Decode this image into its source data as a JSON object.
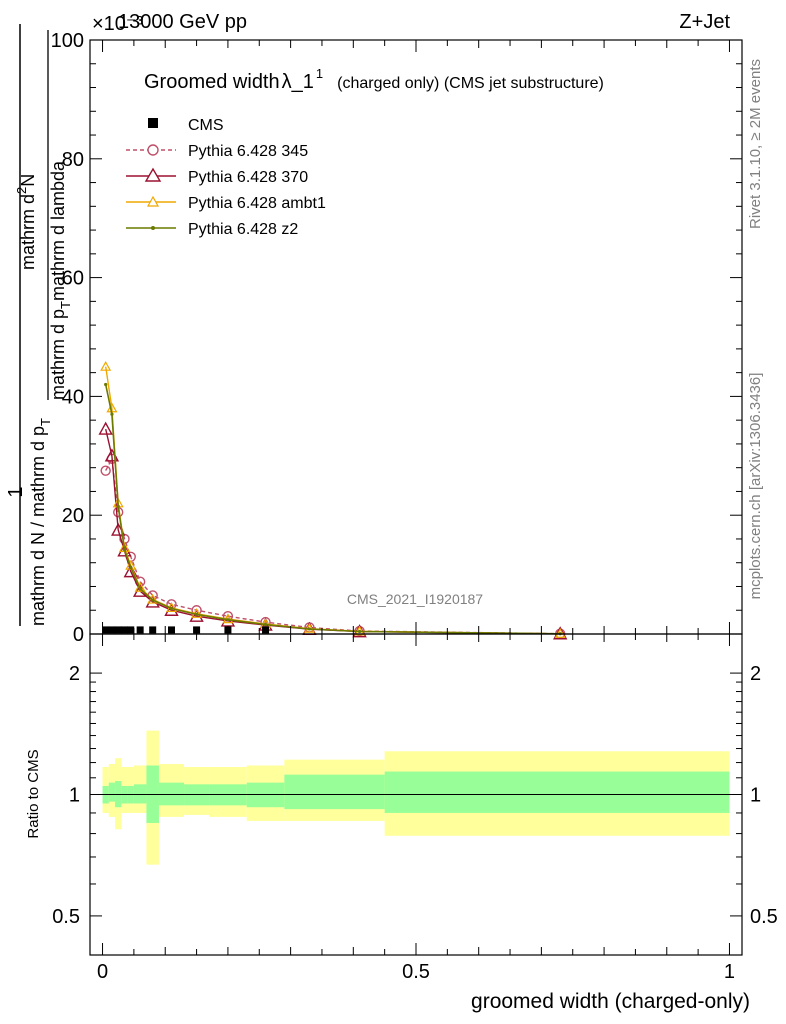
{
  "header": {
    "energy_label": "13000 GeV pp",
    "process_label": "Z+Jet",
    "exponent_label": "×10⁻³"
  },
  "side_labels": {
    "rivet": "Rivet 3.1.10, ≥ 2M events",
    "mcplots": "mcplots.cern.ch [arXiv:1306.3436]"
  },
  "watermark": "CMS_2021_I1920187",
  "main_plot": {
    "title_main": "Groomed width",
    "title_symbol": "λ_1",
    "title_superscript": "1",
    "title_suffix": "(charged only) (CMS jet substructure)",
    "ylabel_numerator": "1",
    "ylabel_denominator": "mathrm d N / mathrm d p",
    "ylabel_denominator_sub": "T",
    "ylabel_top_numerator": "mathrm d",
    "ylabel_top_numerator_sup": "2",
    "ylabel_top_numerator_tail": "N",
    "ylabel_top_denominator": "mathrm d p",
    "ylabel_top_denominator_sub": "T",
    "ylabel_top_denominator_tail": "mathrm d lambda",
    "y_ticks": [
      "0",
      "20",
      "40",
      "60",
      "80",
      "100"
    ],
    "legend": [
      {
        "label": "CMS"
      },
      {
        "label": "Pythia 6.428 345"
      },
      {
        "label": "Pythia 6.428 370"
      },
      {
        "label": "Pythia 6.428 ambt1"
      },
      {
        "label": "Pythia 6.428 z2"
      }
    ]
  },
  "ratio_plot": {
    "ylabel": "Ratio to CMS",
    "y_ticks_left": [
      "0.5",
      "1",
      "2"
    ],
    "y_ticks_right": [
      "0.5",
      "1",
      "2"
    ]
  },
  "x_axis": {
    "label": "groomed width (charged-only)",
    "ticks": [
      "0",
      "0.5",
      "1"
    ]
  },
  "chart_data": {
    "type": "line",
    "xlim": [
      -0.02,
      1.02
    ],
    "ylim": [
      0,
      100
    ],
    "y_scale_factor": "1e-3",
    "grid": false,
    "legend_position": "top-left",
    "colors": {
      "cms": "#000000",
      "p345": "#c0506a",
      "p370": "#9b1030",
      "ambt1": "#f0a800",
      "z2": "#6b7a00",
      "band_stat": "#98ff98",
      "band_total": "#ffff9c"
    },
    "cms": {
      "x": [
        0.005,
        0.015,
        0.025,
        0.035,
        0.045,
        0.06,
        0.08,
        0.11,
        0.15,
        0.2,
        0.26
      ],
      "y": [
        0.1,
        0.1,
        0.1,
        0.1,
        0.1,
        0.1,
        0.1,
        0.1,
        0.1,
        0.1,
        0.1
      ]
    },
    "series": [
      {
        "name": "Pythia 6.428 345",
        "key": "p345",
        "marker": "circle",
        "dashed": true,
        "x": [
          0.005,
          0.015,
          0.025,
          0.035,
          0.045,
          0.06,
          0.08,
          0.11,
          0.15,
          0.2,
          0.26,
          0.33,
          0.41,
          0.73
        ],
        "y": [
          27.5,
          29.5,
          20.5,
          16.0,
          13.0,
          8.8,
          6.5,
          5.0,
          4.0,
          3.0,
          2.0,
          1.1,
          0.5,
          0.05
        ]
      },
      {
        "name": "Pythia 6.428 370",
        "key": "p370",
        "marker": "triangle",
        "dashed": false,
        "x": [
          0.005,
          0.015,
          0.025,
          0.035,
          0.045,
          0.06,
          0.08,
          0.11,
          0.15,
          0.2,
          0.26,
          0.33,
          0.41,
          0.73
        ],
        "y": [
          34.5,
          30.0,
          17.5,
          14.0,
          10.5,
          7.2,
          5.4,
          4.0,
          3.0,
          2.2,
          1.5,
          0.8,
          0.4,
          0.04
        ]
      },
      {
        "name": "Pythia 6.428 ambt1",
        "key": "ambt1",
        "marker": "triangle-small",
        "dashed": false,
        "x": [
          0.005,
          0.015,
          0.025,
          0.035,
          0.045,
          0.06,
          0.08,
          0.11,
          0.15,
          0.2,
          0.26,
          0.33,
          0.41,
          0.73
        ],
        "y": [
          45.0,
          38.0,
          22.0,
          14.5,
          11.5,
          7.8,
          5.8,
          4.4,
          3.4,
          2.5,
          1.7,
          0.9,
          0.45,
          0.04
        ]
      },
      {
        "name": "Pythia 6.428 z2",
        "key": "z2",
        "marker": "dot",
        "dashed": false,
        "x": [
          0.005,
          0.015,
          0.025,
          0.035,
          0.045,
          0.06,
          0.08,
          0.11,
          0.15,
          0.2,
          0.26,
          0.33,
          0.41,
          0.73
        ],
        "y": [
          42.0,
          37.0,
          21.5,
          14.2,
          11.2,
          7.6,
          5.7,
          4.3,
          3.3,
          2.4,
          1.6,
          0.85,
          0.42,
          0.04
        ]
      }
    ],
    "ratio": {
      "ylim_log": [
        0.4,
        2.5
      ],
      "reference": 1.0,
      "bin_edges": [
        0.0,
        0.01,
        0.02,
        0.03,
        0.04,
        0.05,
        0.07,
        0.09,
        0.13,
        0.17,
        0.23,
        0.29,
        0.37,
        0.45,
        1.0
      ],
      "total_low": [
        0.9,
        0.88,
        0.82,
        0.9,
        0.9,
        0.9,
        0.67,
        0.88,
        0.89,
        0.88,
        0.86,
        0.86,
        0.86,
        0.79
      ],
      "total_high": [
        1.17,
        1.19,
        1.23,
        1.17,
        1.17,
        1.18,
        1.44,
        1.19,
        1.17,
        1.17,
        1.18,
        1.22,
        1.22,
        1.28
      ],
      "stat_low": [
        0.95,
        0.96,
        0.93,
        0.95,
        0.95,
        0.95,
        0.85,
        0.94,
        0.94,
        0.94,
        0.93,
        0.92,
        0.92,
        0.9
      ],
      "stat_high": [
        1.05,
        1.07,
        1.08,
        1.05,
        1.05,
        1.06,
        1.18,
        1.07,
        1.06,
        1.06,
        1.07,
        1.12,
        1.12,
        1.14
      ]
    }
  }
}
